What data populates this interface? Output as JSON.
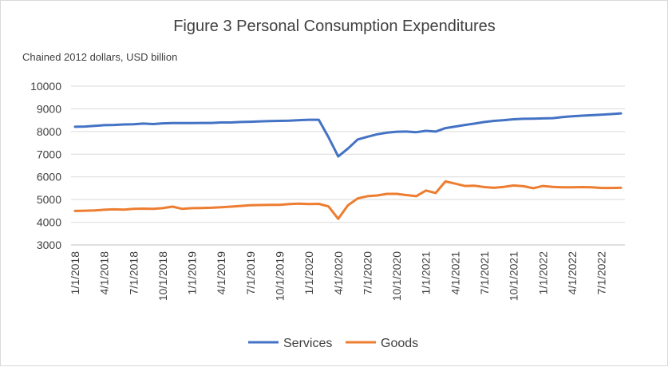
{
  "chart_data": {
    "type": "line",
    "title": "Figure 3 Personal Consumption Expenditures",
    "subtitle": "Chained 2012 dollars, USD billion",
    "xlabel": "",
    "ylabel": "",
    "ylim": [
      3000,
      10000
    ],
    "y_ticks": [
      "10000",
      "9000",
      "8000",
      "7000",
      "6000",
      "5000",
      "4000",
      "3000"
    ],
    "grid": true,
    "legend_position": "bottom",
    "x_tick_labels": [
      "1/1/2018",
      "4/1/2018",
      "7/1/2018",
      "10/1/2018",
      "1/1/2019",
      "4/1/2019",
      "7/1/2019",
      "10/1/2019",
      "1/1/2020",
      "4/1/2020",
      "7/1/2020",
      "10/1/2020",
      "1/1/2021",
      "4/1/2021",
      "7/1/2021",
      "10/1/2021",
      "1/1/2022",
      "4/1/2022",
      "7/1/2022"
    ],
    "x": [
      "1/1/2018",
      "2/1/2018",
      "3/1/2018",
      "4/1/2018",
      "5/1/2018",
      "6/1/2018",
      "7/1/2018",
      "8/1/2018",
      "9/1/2018",
      "10/1/2018",
      "11/1/2018",
      "12/1/2018",
      "1/1/2019",
      "2/1/2019",
      "3/1/2019",
      "4/1/2019",
      "5/1/2019",
      "6/1/2019",
      "7/1/2019",
      "8/1/2019",
      "9/1/2019",
      "10/1/2019",
      "11/1/2019",
      "12/1/2019",
      "1/1/2020",
      "2/1/2020",
      "3/1/2020",
      "4/1/2020",
      "5/1/2020",
      "6/1/2020",
      "7/1/2020",
      "8/1/2020",
      "9/1/2020",
      "10/1/2020",
      "11/1/2020",
      "12/1/2020",
      "1/1/2021",
      "2/1/2021",
      "3/1/2021",
      "4/1/2021",
      "5/1/2021",
      "6/1/2021",
      "7/1/2021",
      "8/1/2021",
      "9/1/2021",
      "10/1/2021",
      "11/1/2021",
      "12/1/2021",
      "1/1/2022",
      "2/1/2022",
      "3/1/2022",
      "4/1/2022",
      "5/1/2022",
      "6/1/2022",
      "7/1/2022",
      "8/1/2022",
      "9/1/2022"
    ],
    "series": [
      {
        "name": "Services",
        "color": "#4472c4",
        "values": [
          8210,
          8220,
          8250,
          8280,
          8290,
          8310,
          8320,
          8350,
          8330,
          8360,
          8370,
          8370,
          8370,
          8380,
          8380,
          8400,
          8400,
          8420,
          8430,
          8450,
          8460,
          8470,
          8480,
          8500,
          8520,
          8520,
          7750,
          6900,
          7250,
          7650,
          7770,
          7880,
          7950,
          7990,
          8000,
          7970,
          8030,
          8000,
          8150,
          8220,
          8290,
          8350,
          8420,
          8470,
          8500,
          8540,
          8560,
          8570,
          8580,
          8590,
          8640,
          8670,
          8700,
          8720,
          8740,
          8770,
          8800
        ]
      },
      {
        "name": "Goods",
        "color": "#ed7d31",
        "values": [
          4500,
          4510,
          4520,
          4550,
          4570,
          4560,
          4590,
          4600,
          4590,
          4620,
          4690,
          4590,
          4620,
          4630,
          4640,
          4660,
          4690,
          4720,
          4750,
          4760,
          4770,
          4770,
          4800,
          4820,
          4800,
          4810,
          4700,
          4150,
          4750,
          5050,
          5150,
          5180,
          5250,
          5250,
          5200,
          5150,
          5400,
          5290,
          5800,
          5700,
          5600,
          5610,
          5550,
          5520,
          5560,
          5620,
          5590,
          5500,
          5600,
          5560,
          5540,
          5540,
          5550,
          5540,
          5510,
          5510,
          5520
        ]
      }
    ]
  }
}
